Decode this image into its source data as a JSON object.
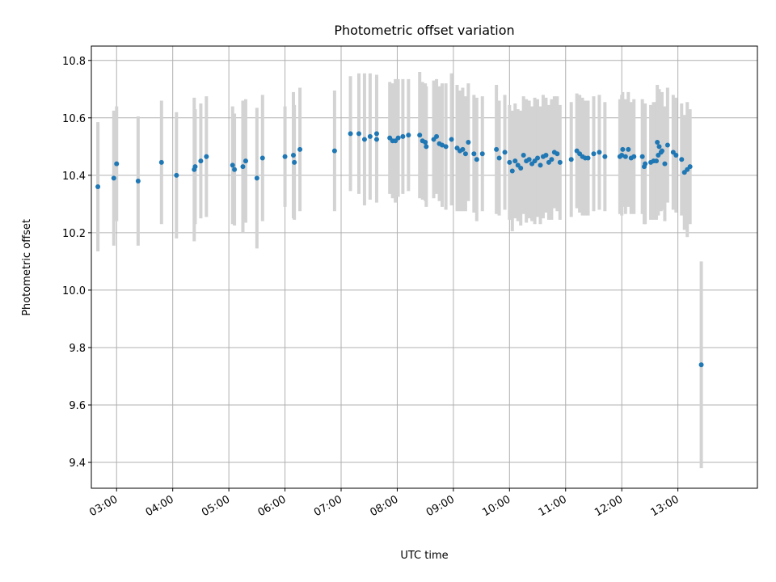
{
  "chart_data": {
    "type": "scatter",
    "title": "Photometric offset variation",
    "xlabel": "UTC time",
    "ylabel": "Photometric offset",
    "xlim": [
      "02:33",
      "14:25"
    ],
    "ylim": [
      9.31,
      10.85
    ],
    "grid": true,
    "x_ticks": [
      "03:00",
      "04:00",
      "05:00",
      "06:00",
      "07:00",
      "08:00",
      "09:00",
      "10:00",
      "11:00",
      "12:00",
      "13:00"
    ],
    "y_ticks": [
      "9.4",
      "9.6",
      "9.8",
      "10.0",
      "10.2",
      "10.4",
      "10.6",
      "10.8"
    ],
    "colors": {
      "point": "#1f77b4",
      "errorbar": "#d3d3d3",
      "grid": "#b0b0b0"
    },
    "series": [
      {
        "points": [
          {
            "t": "02:40",
            "y": 10.36,
            "err": 0.225
          },
          {
            "t": "02:57",
            "y": 10.39,
            "err": 0.235
          },
          {
            "t": "03:00",
            "y": 10.44,
            "err": 0.2
          },
          {
            "t": "03:23",
            "y": 10.38,
            "err": 0.225
          },
          {
            "t": "03:48",
            "y": 10.445,
            "err": 0.215
          },
          {
            "t": "04:04",
            "y": 10.4,
            "err": 0.22
          },
          {
            "t": "04:23",
            "y": 10.42,
            "err": 0.25
          },
          {
            "t": "04:24",
            "y": 10.43,
            "err": 0.2
          },
          {
            "t": "04:30",
            "y": 10.45,
            "err": 0.2
          },
          {
            "t": "04:36",
            "y": 10.465,
            "err": 0.21
          },
          {
            "t": "05:04",
            "y": 10.435,
            "err": 0.205
          },
          {
            "t": "05:06",
            "y": 10.42,
            "err": 0.195
          },
          {
            "t": "05:15",
            "y": 10.43,
            "err": 0.23
          },
          {
            "t": "05:18",
            "y": 10.45,
            "err": 0.215
          },
          {
            "t": "05:30",
            "y": 10.39,
            "err": 0.245
          },
          {
            "t": "05:36",
            "y": 10.46,
            "err": 0.22
          },
          {
            "t": "06:00",
            "y": 10.465,
            "err": 0.175
          },
          {
            "t": "06:09",
            "y": 10.47,
            "err": 0.22
          },
          {
            "t": "06:10",
            "y": 10.445,
            "err": 0.2
          },
          {
            "t": "06:16",
            "y": 10.49,
            "err": 0.215
          },
          {
            "t": "06:53",
            "y": 10.485,
            "err": 0.21
          },
          {
            "t": "07:10",
            "y": 10.545,
            "err": 0.2
          },
          {
            "t": "07:19",
            "y": 10.545,
            "err": 0.21
          },
          {
            "t": "07:25",
            "y": 10.525,
            "err": 0.23
          },
          {
            "t": "07:31",
            "y": 10.535,
            "err": 0.22
          },
          {
            "t": "07:38",
            "y": 10.525,
            "err": 0.22
          },
          {
            "t": "07:38",
            "y": 10.545,
            "err": 0.205
          },
          {
            "t": "07:52",
            "y": 10.53,
            "err": 0.195
          },
          {
            "t": "07:55",
            "y": 10.52,
            "err": 0.2
          },
          {
            "t": "07:58",
            "y": 10.52,
            "err": 0.215
          },
          {
            "t": "08:01",
            "y": 10.53,
            "err": 0.205
          },
          {
            "t": "08:06",
            "y": 10.535,
            "err": 0.2
          },
          {
            "t": "08:12",
            "y": 10.54,
            "err": 0.195
          },
          {
            "t": "08:24",
            "y": 10.54,
            "err": 0.22
          },
          {
            "t": "08:27",
            "y": 10.52,
            "err": 0.205
          },
          {
            "t": "08:30",
            "y": 10.515,
            "err": 0.205
          },
          {
            "t": "08:31",
            "y": 10.5,
            "err": 0.21
          },
          {
            "t": "08:39",
            "y": 10.525,
            "err": 0.205
          },
          {
            "t": "08:42",
            "y": 10.535,
            "err": 0.2
          },
          {
            "t": "08:45",
            "y": 10.51,
            "err": 0.2
          },
          {
            "t": "08:48",
            "y": 10.505,
            "err": 0.215
          },
          {
            "t": "08:52",
            "y": 10.5,
            "err": 0.22
          },
          {
            "t": "08:58",
            "y": 10.525,
            "err": 0.23
          },
          {
            "t": "09:04",
            "y": 10.495,
            "err": 0.22
          },
          {
            "t": "09:07",
            "y": 10.485,
            "err": 0.21
          },
          {
            "t": "09:10",
            "y": 10.49,
            "err": 0.215
          },
          {
            "t": "09:13",
            "y": 10.475,
            "err": 0.2
          },
          {
            "t": "09:16",
            "y": 10.515,
            "err": 0.205
          },
          {
            "t": "09:22",
            "y": 10.475,
            "err": 0.205
          },
          {
            "t": "09:25",
            "y": 10.455,
            "err": 0.215
          },
          {
            "t": "09:31",
            "y": 10.475,
            "err": 0.2
          },
          {
            "t": "09:46",
            "y": 10.49,
            "err": 0.225
          },
          {
            "t": "09:49",
            "y": 10.46,
            "err": 0.2
          },
          {
            "t": "09:55",
            "y": 10.48,
            "err": 0.2
          },
          {
            "t": "10:00",
            "y": 10.445,
            "err": 0.2
          },
          {
            "t": "10:03",
            "y": 10.415,
            "err": 0.21
          },
          {
            "t": "10:06",
            "y": 10.45,
            "err": 0.2
          },
          {
            "t": "10:09",
            "y": 10.435,
            "err": 0.195
          },
          {
            "t": "10:12",
            "y": 10.425,
            "err": 0.2
          },
          {
            "t": "10:15",
            "y": 10.47,
            "err": 0.205
          },
          {
            "t": "10:18",
            "y": 10.45,
            "err": 0.215
          },
          {
            "t": "10:21",
            "y": 10.455,
            "err": 0.205
          },
          {
            "t": "10:24",
            "y": 10.44,
            "err": 0.2
          },
          {
            "t": "10:27",
            "y": 10.45,
            "err": 0.22
          },
          {
            "t": "10:30",
            "y": 10.46,
            "err": 0.205
          },
          {
            "t": "10:33",
            "y": 10.435,
            "err": 0.205
          },
          {
            "t": "10:36",
            "y": 10.465,
            "err": 0.215
          },
          {
            "t": "10:39",
            "y": 10.47,
            "err": 0.2
          },
          {
            "t": "10:42",
            "y": 10.445,
            "err": 0.2
          },
          {
            "t": "10:45",
            "y": 10.455,
            "err": 0.21
          },
          {
            "t": "10:48",
            "y": 10.48,
            "err": 0.195
          },
          {
            "t": "10:51",
            "y": 10.475,
            "err": 0.2
          },
          {
            "t": "10:54",
            "y": 10.445,
            "err": 0.2
          },
          {
            "t": "11:06",
            "y": 10.455,
            "err": 0.2
          },
          {
            "t": "11:12",
            "y": 10.485,
            "err": 0.2
          },
          {
            "t": "11:15",
            "y": 10.475,
            "err": 0.205
          },
          {
            "t": "11:18",
            "y": 10.465,
            "err": 0.205
          },
          {
            "t": "11:21",
            "y": 10.46,
            "err": 0.2
          },
          {
            "t": "11:24",
            "y": 10.46,
            "err": 0.2
          },
          {
            "t": "11:30",
            "y": 10.475,
            "err": 0.2
          },
          {
            "t": "11:36",
            "y": 10.48,
            "err": 0.2
          },
          {
            "t": "11:42",
            "y": 10.465,
            "err": 0.19
          },
          {
            "t": "11:58",
            "y": 10.465,
            "err": 0.2
          },
          {
            "t": "12:00",
            "y": 10.47,
            "err": 0.21
          },
          {
            "t": "12:01",
            "y": 10.49,
            "err": 0.2
          },
          {
            "t": "12:04",
            "y": 10.465,
            "err": 0.2
          },
          {
            "t": "12:07",
            "y": 10.49,
            "err": 0.2
          },
          {
            "t": "12:10",
            "y": 10.46,
            "err": 0.195
          },
          {
            "t": "12:13",
            "y": 10.465,
            "err": 0.2
          },
          {
            "t": "12:22",
            "y": 10.465,
            "err": 0.2
          },
          {
            "t": "12:24",
            "y": 10.43,
            "err": 0.2
          },
          {
            "t": "12:25",
            "y": 10.44,
            "err": 0.21
          },
          {
            "t": "12:31",
            "y": 10.445,
            "err": 0.2
          },
          {
            "t": "12:34",
            "y": 10.45,
            "err": 0.205
          },
          {
            "t": "12:37",
            "y": 10.45,
            "err": 0.205
          },
          {
            "t": "12:38",
            "y": 10.515,
            "err": 0.2
          },
          {
            "t": "12:39",
            "y": 10.47,
            "err": 0.21
          },
          {
            "t": "12:40",
            "y": 10.5,
            "err": 0.2
          },
          {
            "t": "12:42",
            "y": 10.48,
            "err": 0.205
          },
          {
            "t": "12:43",
            "y": 10.485,
            "err": 0.205
          },
          {
            "t": "12:46",
            "y": 10.44,
            "err": 0.2
          },
          {
            "t": "12:49",
            "y": 10.505,
            "err": 0.2
          },
          {
            "t": "12:55",
            "y": 10.48,
            "err": 0.2
          },
          {
            "t": "12:58",
            "y": 10.47,
            "err": 0.2
          },
          {
            "t": "13:04",
            "y": 10.455,
            "err": 0.195
          },
          {
            "t": "13:07",
            "y": 10.41,
            "err": 0.2
          },
          {
            "t": "13:10",
            "y": 10.42,
            "err": 0.235
          },
          {
            "t": "13:13",
            "y": 10.43,
            "err": 0.2
          },
          {
            "t": "13:25",
            "y": 9.74,
            "err": 0.36
          }
        ]
      }
    ]
  }
}
